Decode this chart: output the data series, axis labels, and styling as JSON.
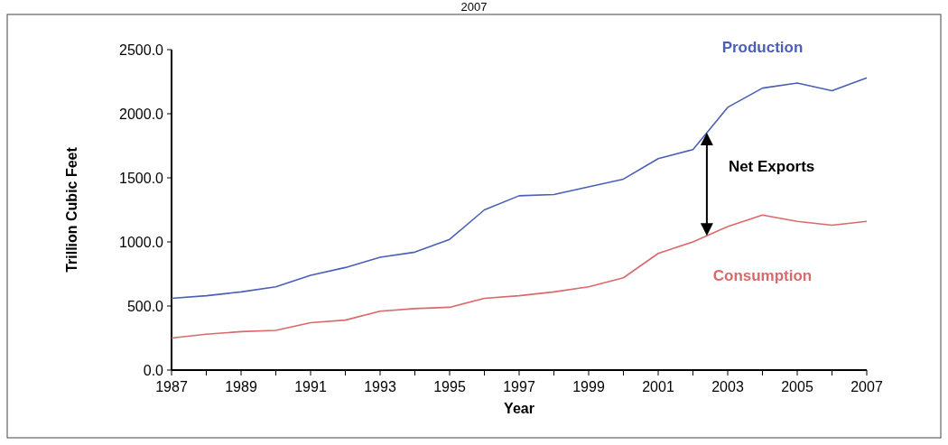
{
  "chart_data": {
    "type": "line",
    "title": "2007",
    "xlabel": "Year",
    "ylabel": "Trillion Cubic Feet",
    "x": [
      1987,
      1988,
      1989,
      1990,
      1991,
      1992,
      1993,
      1994,
      1995,
      1996,
      1997,
      1998,
      1999,
      2000,
      2001,
      2002,
      2003,
      2004,
      2005,
      2006,
      2007
    ],
    "series": [
      {
        "name": "Production",
        "color": "#4a5fb5",
        "values": [
          560,
          580,
          610,
          650,
          740,
          800,
          880,
          920,
          1020,
          1250,
          1360,
          1370,
          1430,
          1490,
          1650,
          1720,
          2050,
          2200,
          2240,
          2180,
          2280
        ]
      },
      {
        "name": "Consumption",
        "color": "#d9696b",
        "values": [
          250,
          280,
          300,
          310,
          370,
          390,
          460,
          480,
          490,
          560,
          580,
          610,
          650,
          720,
          910,
          1000,
          1120,
          1210,
          1160,
          1130,
          1160
        ]
      }
    ],
    "xlim": [
      1987,
      2007
    ],
    "xticks": [
      1987,
      {
        "value": 1988,
        "label": null
      },
      1989,
      {
        "value": 1990,
        "label": null
      },
      1991,
      {
        "value": 1992,
        "label": null
      },
      1993,
      {
        "value": 1994,
        "label": null
      },
      1995,
      {
        "value": 1996,
        "label": null
      },
      1997,
      {
        "value": 1998,
        "label": null
      },
      1999,
      {
        "value": 2000,
        "label": null
      },
      2001,
      {
        "value": 2002,
        "label": null
      },
      2003,
      {
        "value": 2004,
        "label": null
      },
      2005,
      {
        "value": 2006,
        "label": null
      },
      2007
    ],
    "ylim": [
      0,
      2500
    ],
    "yticks": [
      {
        "value": 0,
        "label": "0.0"
      },
      {
        "value": 500,
        "label": "500.0"
      },
      {
        "value": 1000,
        "label": "1000.0"
      },
      {
        "value": 1500,
        "label": "1500.0"
      },
      {
        "value": 2000,
        "label": "2000.0"
      },
      {
        "value": 2500,
        "label": "2500.0"
      }
    ],
    "annotations": [
      "Net Exports"
    ],
    "grid": false
  }
}
